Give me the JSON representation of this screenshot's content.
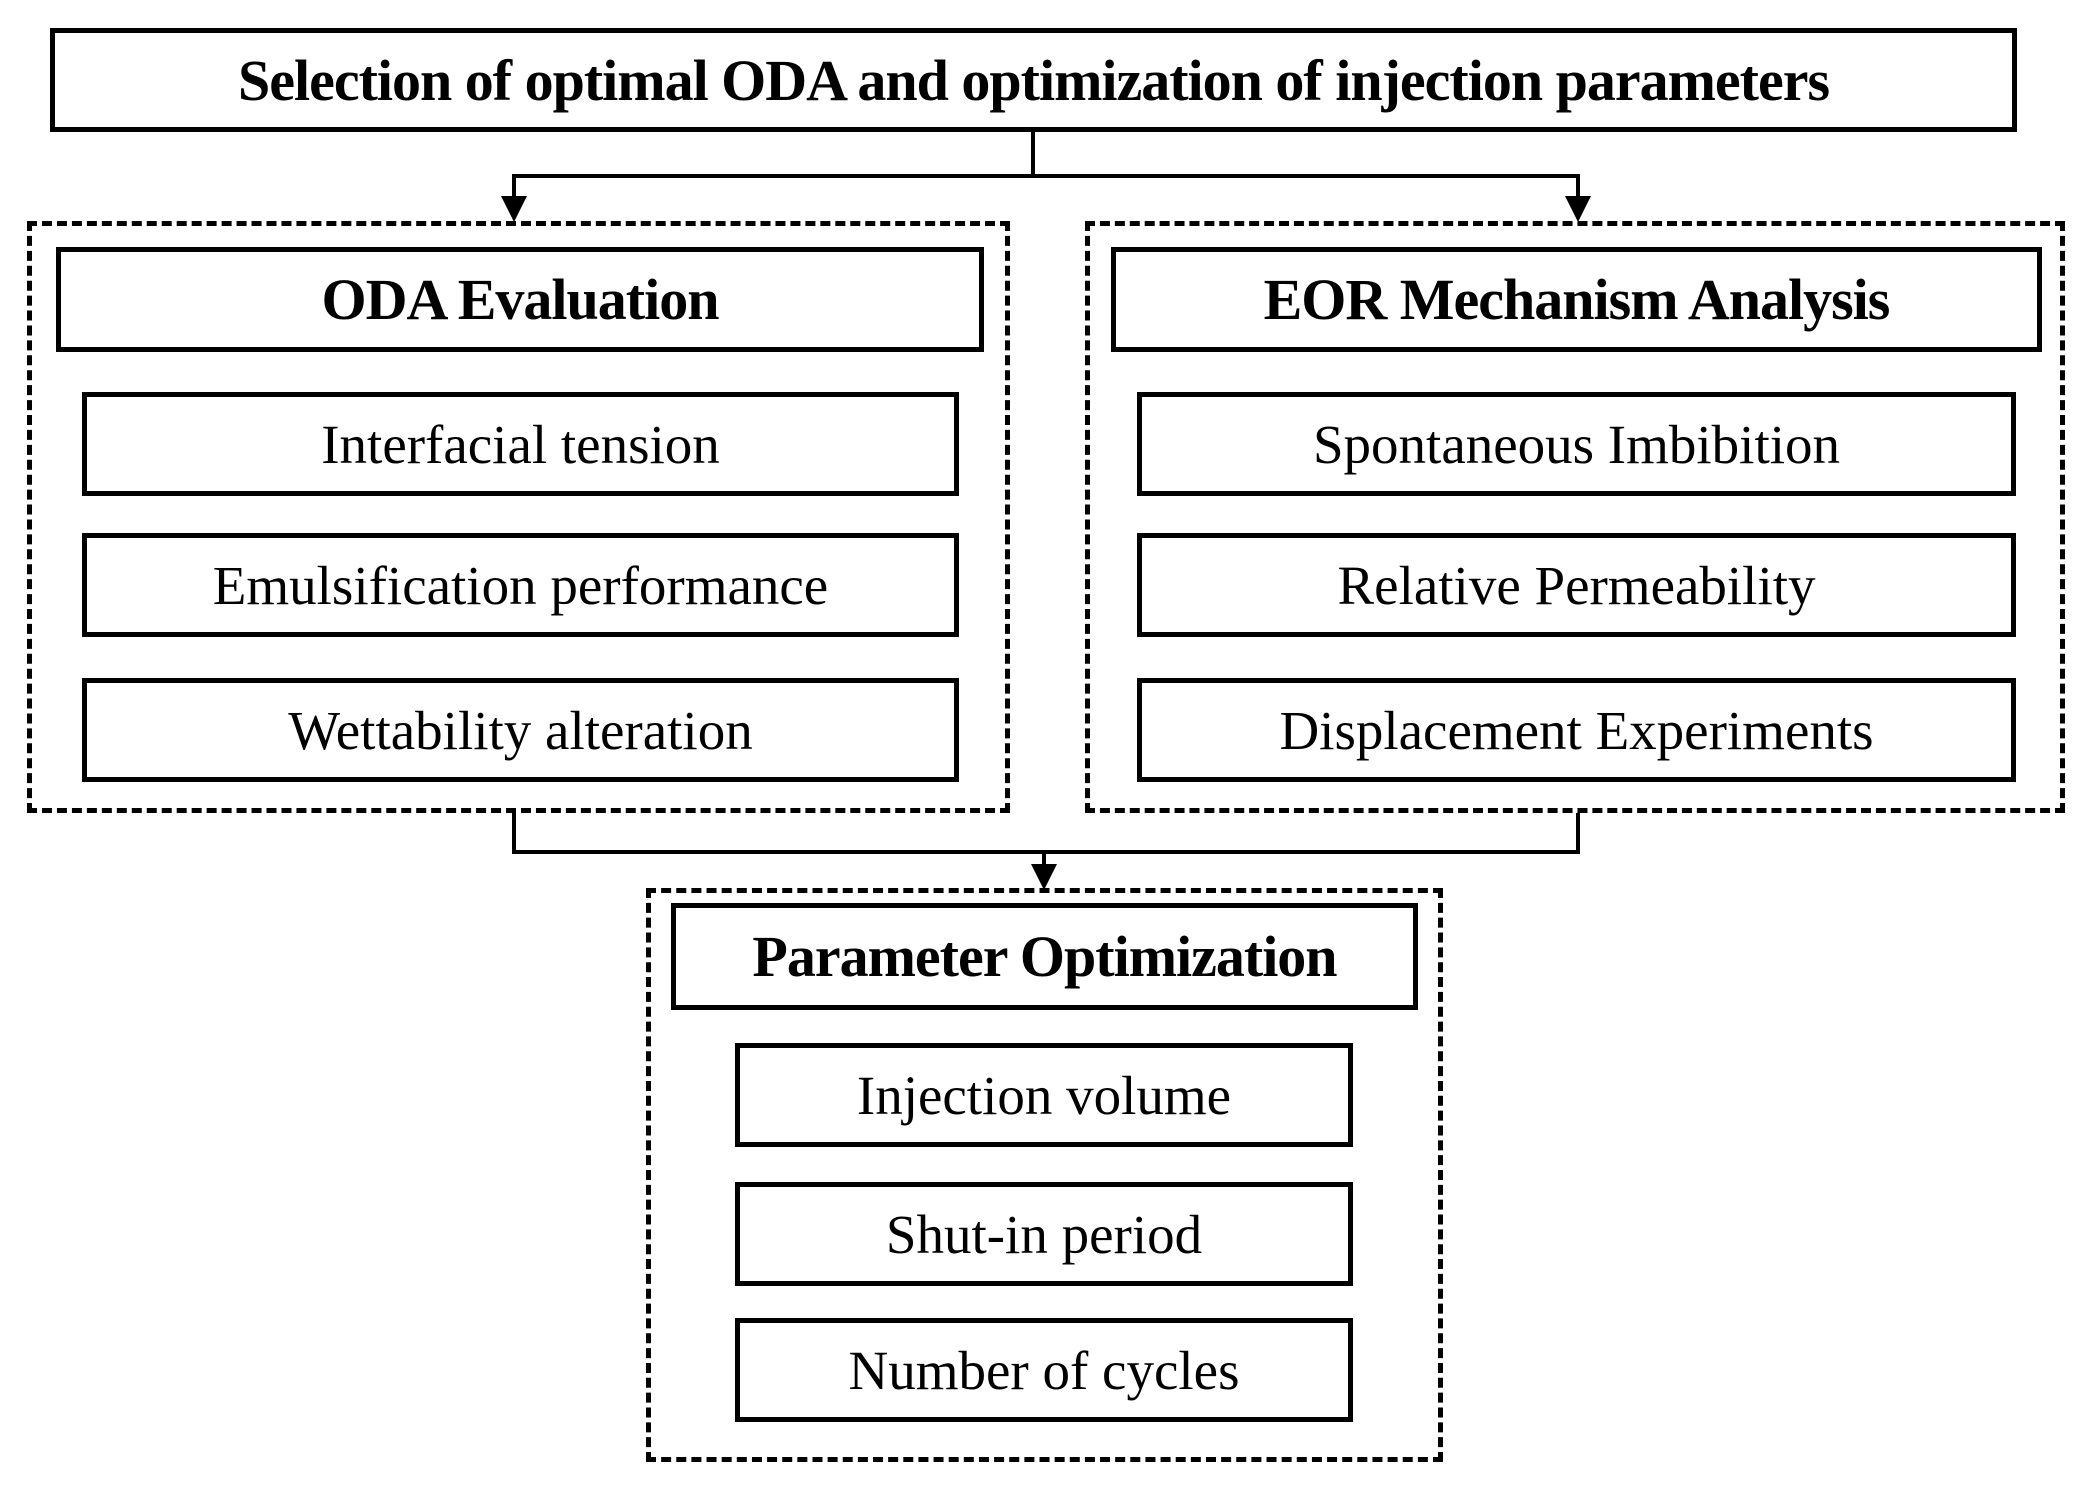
{
  "diagram": {
    "title": "Selection of optimal ODA and optimization of injection parameters",
    "panels": [
      {
        "header": "ODA Evaluation",
        "items": [
          "Interfacial tension",
          "Emulsification performance",
          "Wettability alteration"
        ]
      },
      {
        "header": "EOR Mechanism Analysis",
        "items": [
          "Spontaneous Imbibition",
          "Relative Permeability",
          "Displacement Experiments"
        ]
      },
      {
        "header": "Parameter Optimization",
        "items": [
          "Injection volume",
          "Shut-in period",
          "Number of cycles"
        ]
      }
    ],
    "colors": {
      "line": "#000000",
      "background": "#ffffff"
    }
  }
}
